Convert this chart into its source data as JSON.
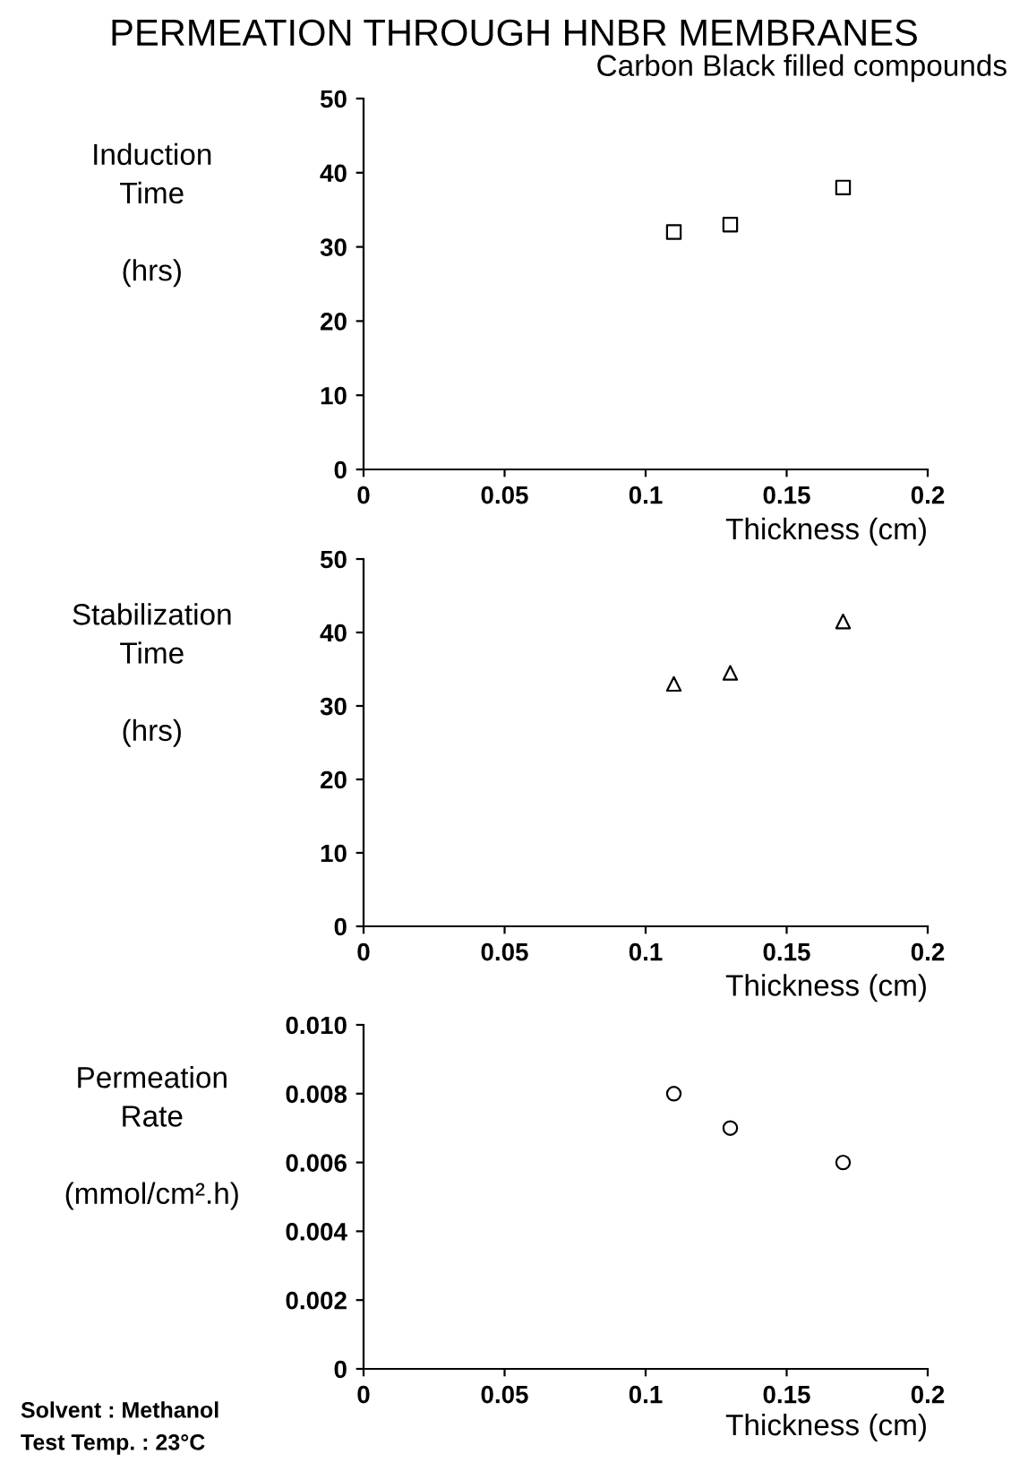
{
  "chart_data": [
    {
      "type": "scatter",
      "title": "PERMEATION THROUGH HNBR MEMBRANES",
      "subtitle": "Carbon Black filled compounds",
      "ylabel": "Induction\nTime\n\n(hrs)",
      "xlabel": "Thickness (cm)",
      "x": [
        0.11,
        0.13,
        0.17
      ],
      "values": [
        32,
        33,
        38
      ],
      "color": "#000000",
      "marker": "square",
      "xlim": [
        0,
        0.2
      ],
      "xticks": [
        0,
        0.05,
        0.1,
        0.15,
        0.2
      ],
      "ylim": [
        0,
        50
      ],
      "yticks": [
        0,
        10,
        20,
        30,
        40,
        50
      ]
    },
    {
      "type": "scatter",
      "ylabel": "Stabilization\nTime\n\n(hrs)",
      "xlabel": "Thickness (cm)",
      "x": [
        0.11,
        0.13,
        0.17
      ],
      "values": [
        33,
        34.5,
        41.5
      ],
      "color": "#000000",
      "marker": "triangle",
      "xlim": [
        0,
        0.2
      ],
      "xticks": [
        0,
        0.05,
        0.1,
        0.15,
        0.2
      ],
      "ylim": [
        0,
        50
      ],
      "yticks": [
        0,
        10,
        20,
        30,
        40,
        50
      ]
    },
    {
      "type": "scatter",
      "ylabel": "Permeation\nRate\n\n(mmol/cm².h)",
      "xlabel": "Thickness (cm)",
      "x": [
        0.11,
        0.13,
        0.17
      ],
      "values": [
        0.008,
        0.007,
        0.006
      ],
      "color": "#000000",
      "marker": "circle",
      "xlim": [
        0,
        0.2
      ],
      "xticks": [
        0,
        0.05,
        0.1,
        0.15,
        0.2
      ],
      "ylim": [
        0,
        0.01
      ],
      "yticks": [
        0,
        0.002,
        0.004,
        0.006,
        0.008,
        {
          "value": 0.01,
          "label": "0.010"
        }
      ],
      "annotations": [
        "Solvent : Methanol",
        "Test Temp. : 23°C"
      ]
    }
  ]
}
